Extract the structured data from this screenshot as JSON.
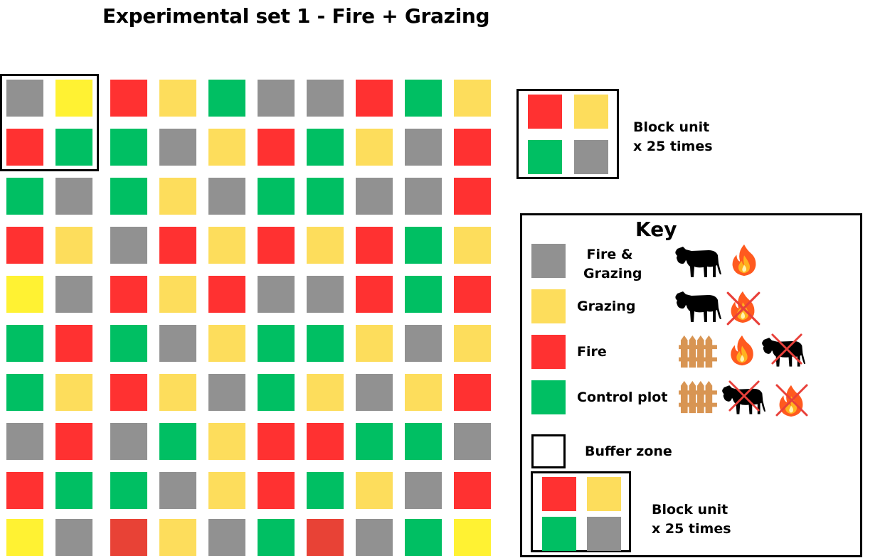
{
  "title": "Experimental set 1 - Fire + Grazing",
  "colors": {
    "gray": "#919191",
    "yellow": "#fff233",
    "sand": "#fddd5c",
    "red": "#ff3131",
    "brick": "#e84236",
    "green": "#00bf63"
  },
  "grid": [
    [
      "gray",
      "yellow",
      "red",
      "sand",
      "green",
      "gray",
      "gray",
      "red",
      "green",
      "sand"
    ],
    [
      "red",
      "green",
      "green",
      "gray",
      "sand",
      "red",
      "green",
      "sand",
      "gray",
      "red"
    ],
    [
      "green",
      "gray",
      "green",
      "sand",
      "gray",
      "green",
      "green",
      "gray",
      "gray",
      "red"
    ],
    [
      "red",
      "sand",
      "gray",
      "red",
      "sand",
      "red",
      "sand",
      "red",
      "green",
      "sand"
    ],
    [
      "yellow",
      "gray",
      "red",
      "sand",
      "red",
      "gray",
      "gray",
      "red",
      "green",
      "red"
    ],
    [
      "green",
      "red",
      "green",
      "gray",
      "sand",
      "green",
      "green",
      "sand",
      "gray",
      "sand"
    ],
    [
      "green",
      "sand",
      "red",
      "sand",
      "gray",
      "green",
      "sand",
      "gray",
      "sand",
      "red"
    ],
    [
      "gray",
      "red",
      "gray",
      "green",
      "sand",
      "red",
      "red",
      "green",
      "green",
      "gray"
    ],
    [
      "red",
      "green",
      "green",
      "gray",
      "sand",
      "red",
      "green",
      "sand",
      "gray",
      "red"
    ],
    [
      "yellow",
      "gray",
      "brick",
      "sand",
      "gray",
      "green",
      "brick",
      "gray",
      "green",
      "yellow"
    ]
  ],
  "block_unit": {
    "label_line1": "Block unit",
    "label_line2": "x 25 times",
    "cells": [
      "red",
      "sand",
      "green",
      "gray"
    ]
  },
  "key": {
    "title": "Key",
    "items": [
      {
        "color": "gray",
        "label_line1": "Fire &",
        "label_line2": "Grazing",
        "icons": [
          "cow-icon",
          "fire-icon"
        ]
      },
      {
        "color": "sand",
        "label": "Grazing",
        "icons": [
          "cow-icon",
          "no-fire-icon"
        ]
      },
      {
        "color": "red",
        "label": "Fire",
        "icons": [
          "fence-icon",
          "fire-icon",
          "no-cow-icon"
        ]
      },
      {
        "color": "green",
        "label": "Control plot",
        "icons": [
          "fence-icon",
          "no-cow-icon",
          "no-fire-icon"
        ]
      }
    ],
    "buffer_label": "Buffer zone",
    "block_unit": {
      "label_line1": "Block unit",
      "label_line2": "x 25 times",
      "cells": [
        "red",
        "sand",
        "green",
        "gray"
      ]
    }
  }
}
